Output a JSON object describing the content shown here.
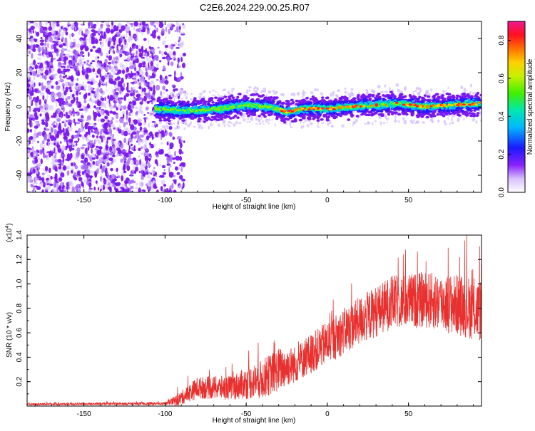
{
  "title": "C2E6.2024.229.00.25.R07",
  "colors": {
    "snr_line": "#e8302e",
    "spectrogram_dots": "#7a18f0",
    "spectrogram_background": "#ffffff"
  },
  "chart_data": [
    {
      "type": "heatmap",
      "name": "spectrogram",
      "xlabel": "Height of straight line (km)",
      "ylabel": "Frequency (Hz)",
      "xlim": [
        -185,
        95
      ],
      "ylim": [
        -50,
        50
      ],
      "x_ticks": [
        -150,
        -100,
        -50,
        0,
        50
      ],
      "y_ticks": [
        -40,
        -20,
        0,
        20,
        40
      ],
      "signal_onset_km": -106,
      "noise_cutoff_km": -88,
      "centerline": [
        {
          "x": -106,
          "y": -1
        },
        {
          "x": -95,
          "y": -2
        },
        {
          "x": -80,
          "y": -2
        },
        {
          "x": -65,
          "y": -1
        },
        {
          "x": -50,
          "y": 1
        },
        {
          "x": -35,
          "y": 0
        },
        {
          "x": -25,
          "y": -3
        },
        {
          "x": -15,
          "y": -1
        },
        {
          "x": 0,
          "y": -1
        },
        {
          "x": 15,
          "y": 0
        },
        {
          "x": 30,
          "y": 1
        },
        {
          "x": 45,
          "y": 2
        },
        {
          "x": 60,
          "y": 0
        },
        {
          "x": 75,
          "y": 1
        },
        {
          "x": 95,
          "y": 2
        }
      ],
      "colorbar": {
        "label": "Normalized spectral amplitude",
        "range": [
          0,
          0.9
        ],
        "ticks": [
          0.0,
          0.2,
          0.4,
          0.6,
          0.8
        ]
      }
    },
    {
      "type": "line",
      "name": "snr",
      "xlabel": "Height of straight line (km)",
      "ylabel": "SNR (10 * v/v)",
      "y_multiplier": "(x10",
      "y_multiplier_exp": "4",
      "y_multiplier_close": ")",
      "xlim": [
        -185,
        95
      ],
      "ylim": [
        0,
        14000
      ],
      "x_ticks": [
        -150,
        -100,
        -50,
        0,
        50
      ],
      "y_ticks": [
        0.2,
        0.4,
        0.6,
        0.8,
        1.0,
        1.2,
        1.4
      ],
      "envelope": [
        {
          "x": -185,
          "mean": 150,
          "spread": 80
        },
        {
          "x": -100,
          "mean": 200,
          "spread": 120
        },
        {
          "x": -92,
          "mean": 500,
          "spread": 500
        },
        {
          "x": -80,
          "mean": 1500,
          "spread": 900
        },
        {
          "x": -60,
          "mean": 1500,
          "spread": 1000
        },
        {
          "x": -40,
          "mean": 2200,
          "spread": 1600
        },
        {
          "x": -30,
          "mean": 3000,
          "spread": 1800
        },
        {
          "x": -20,
          "mean": 3400,
          "spread": 1500
        },
        {
          "x": 0,
          "mean": 5200,
          "spread": 1800
        },
        {
          "x": 20,
          "mean": 7000,
          "spread": 2000
        },
        {
          "x": 40,
          "mean": 8500,
          "spread": 2200
        },
        {
          "x": 60,
          "mean": 8700,
          "spread": 2300
        },
        {
          "x": 80,
          "mean": 8300,
          "spread": 2500
        },
        {
          "x": 95,
          "mean": 7800,
          "spread": 2600
        }
      ]
    }
  ]
}
